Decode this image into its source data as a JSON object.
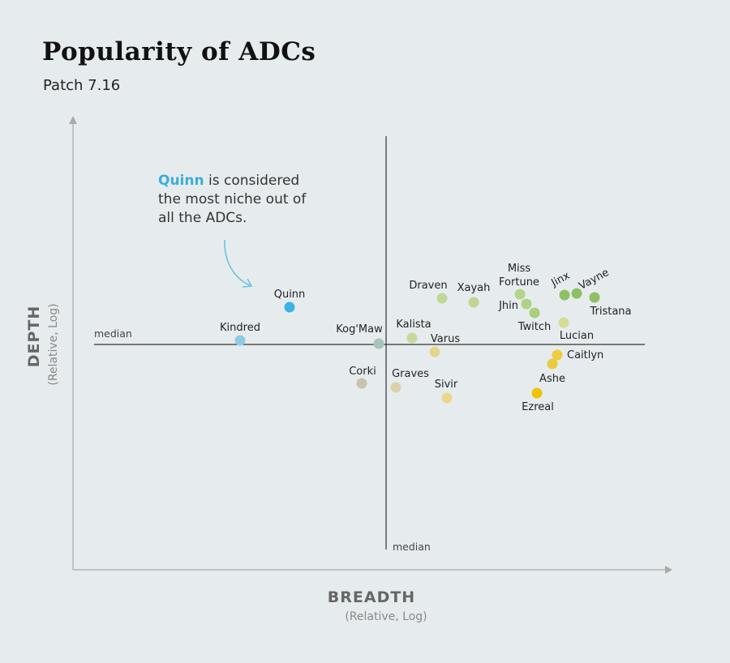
{
  "title": "Popularity of ADCs",
  "subtitle": "Patch 7.16",
  "annotation": {
    "highlight": "Quinn",
    "text": " is considered the most niche out of all the ADCs.",
    "color": "#3aaed8"
  },
  "chart_data": {
    "type": "scatter",
    "title": "Popularity of ADCs",
    "subtitle": "Patch 7.16",
    "xlabel": "BREADTH",
    "xlabel_sub": "(Relative, Log)",
    "ylabel": "DEPTH",
    "ylabel_sub": "(Relative, Log)",
    "x_scale": "log (relative)",
    "y_scale": "log (relative)",
    "xlim": [
      -38.6,
      35.2
    ],
    "ylim": [
      -27.8,
      28.0
    ],
    "median_x": 0,
    "median_y": 0,
    "median_label": "median",
    "grid": false,
    "points": [
      {
        "name": "Quinn",
        "x": -11.9,
        "y": 4.6,
        "color": "#3cb4e5"
      },
      {
        "name": "Kindred",
        "x": -18.0,
        "y": 0.5,
        "color": "#8ccbe4"
      },
      {
        "name": "Kog'Maw",
        "x": -0.9,
        "y": 0.1,
        "color": "#a6c4bb"
      },
      {
        "name": "Corki",
        "x": -3.0,
        "y": -4.8,
        "color": "#c9c3ac"
      },
      {
        "name": "Graves",
        "x": 1.2,
        "y": -5.3,
        "color": "#dcd0a8"
      },
      {
        "name": "Kalista",
        "x": 3.2,
        "y": 0.8,
        "color": "#c5d8a0"
      },
      {
        "name": "Varus",
        "x": 6.0,
        "y": -0.9,
        "color": "#e6d48d"
      },
      {
        "name": "Sivir",
        "x": 7.5,
        "y": -6.6,
        "color": "#ecd68a"
      },
      {
        "name": "Draven",
        "x": 6.9,
        "y": 5.7,
        "color": "#bfd897"
      },
      {
        "name": "Xayah",
        "x": 10.8,
        "y": 5.2,
        "color": "#bdd68f"
      },
      {
        "name": "Miss Fortune",
        "x": 16.5,
        "y": 6.2,
        "color": "#b2d58a"
      },
      {
        "name": "Jhin",
        "x": 17.3,
        "y": 5.0,
        "color": "#aed286"
      },
      {
        "name": "Twitch",
        "x": 18.3,
        "y": 3.9,
        "color": "#a9cf7f"
      },
      {
        "name": "Jinx",
        "x": 22.0,
        "y": 6.1,
        "color": "#8dc063"
      },
      {
        "name": "Vayne",
        "x": 23.5,
        "y": 6.3,
        "color": "#8dc063"
      },
      {
        "name": "Tristana",
        "x": 25.7,
        "y": 5.8,
        "color": "#8fc066"
      },
      {
        "name": "Lucian",
        "x": 21.9,
        "y": 2.7,
        "color": "#d6dc95"
      },
      {
        "name": "Caitlyn",
        "x": 21.1,
        "y": -1.3,
        "color": "#edcd3a"
      },
      {
        "name": "Ashe",
        "x": 20.5,
        "y": -2.4,
        "color": "#ebca3f"
      },
      {
        "name": "Ezreal",
        "x": 18.6,
        "y": -6.0,
        "color": "#f0c400"
      }
    ]
  }
}
